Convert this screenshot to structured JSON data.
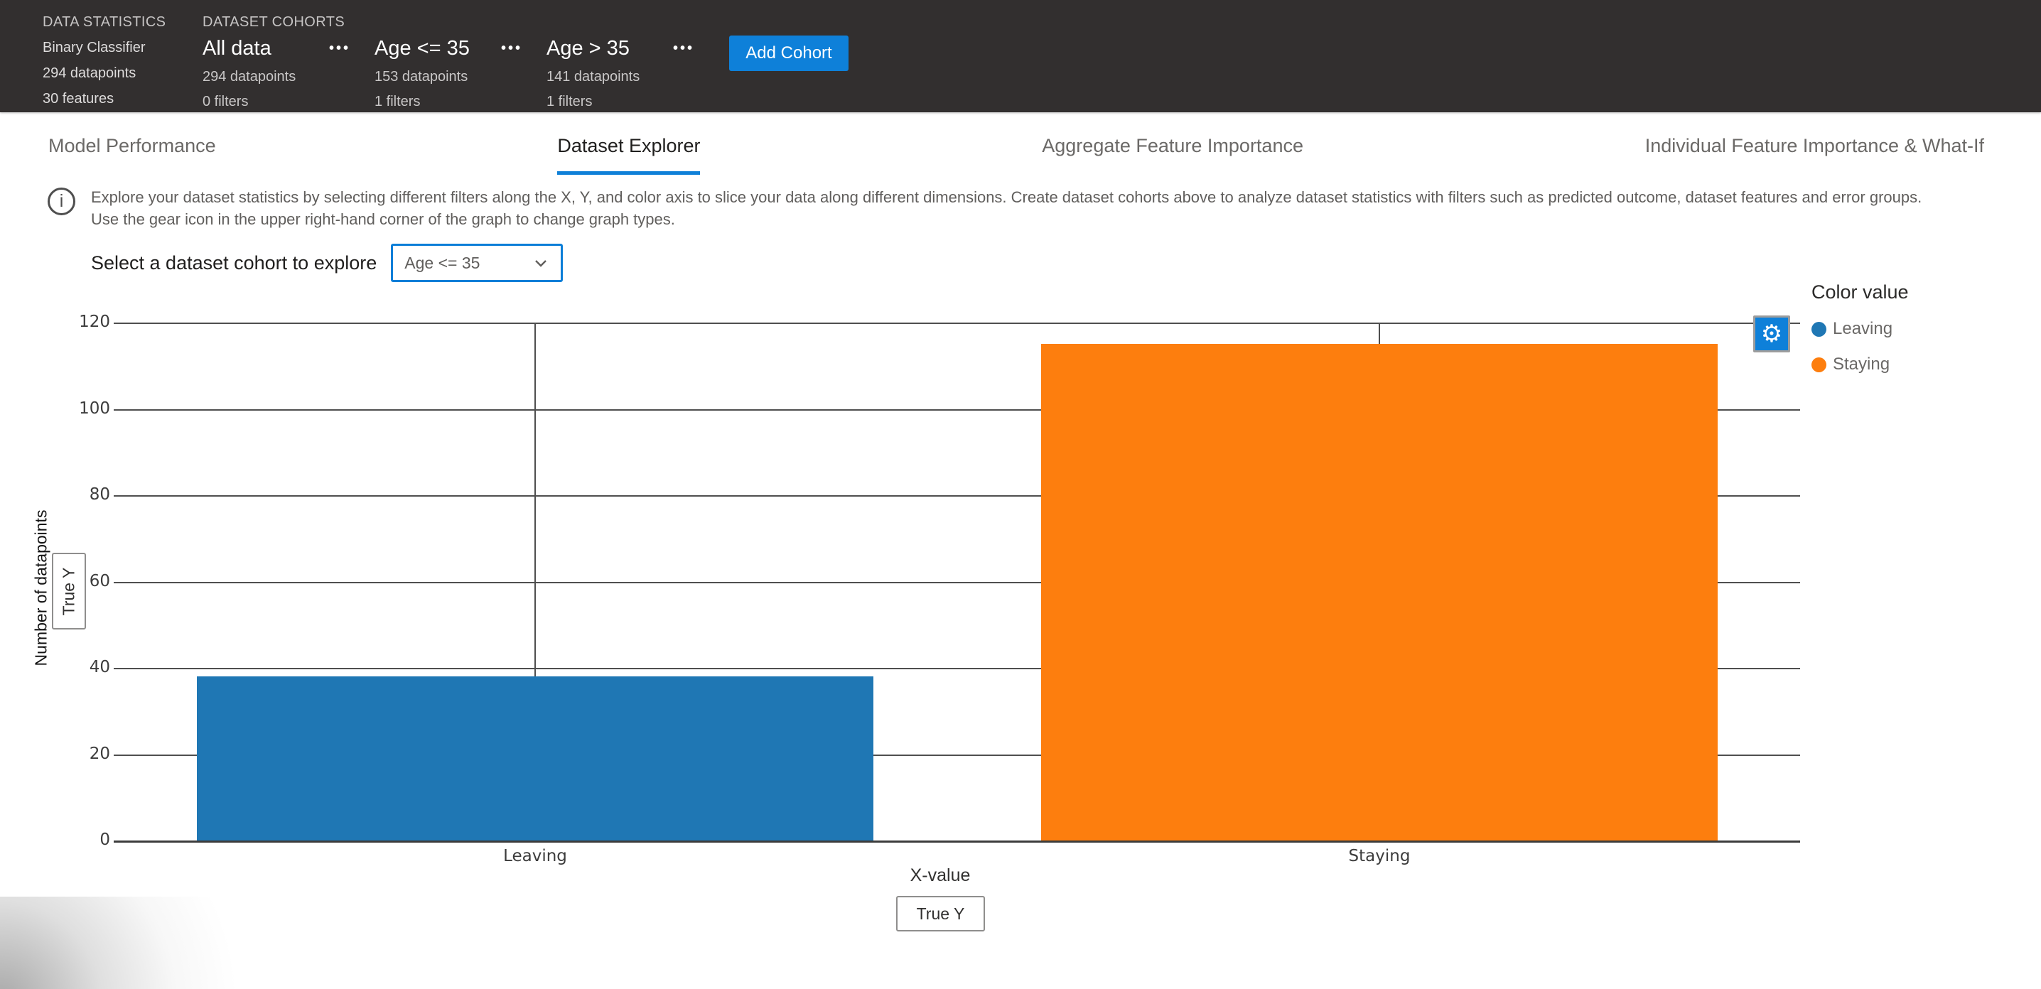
{
  "header": {
    "data_statistics": {
      "label": "DATA STATISTICS",
      "model_type": "Binary Classifier",
      "datapoints": "294 datapoints",
      "features": "30 features"
    },
    "dataset_cohorts": {
      "label": "DATASET COHORTS",
      "cohorts": [
        {
          "name": "All data",
          "datapoints": "294 datapoints",
          "filters": "0 filters"
        },
        {
          "name": "Age <= 35",
          "datapoints": "153 datapoints",
          "filters": "1 filters"
        },
        {
          "name": "Age > 35",
          "datapoints": "141 datapoints",
          "filters": "1 filters"
        }
      ],
      "add_cohort_label": "Add Cohort"
    }
  },
  "tabs": [
    {
      "label": "Model Performance",
      "active": false
    },
    {
      "label": "Dataset Explorer",
      "active": true
    },
    {
      "label": "Aggregate Feature Importance",
      "active": false
    },
    {
      "label": "Individual Feature Importance & What-If",
      "active": false
    }
  ],
  "info": {
    "line1": "Explore your dataset statistics by selecting different filters along the X, Y, and color axis to slice your data along different dimensions. Create dataset cohorts above to analyze dataset statistics with filters such as predicted outcome, dataset features and error groups.",
    "line2": "Use the gear icon in the upper right-hand corner of the graph to change graph types."
  },
  "cohort_selector": {
    "label": "Select a dataset cohort to explore",
    "value": "Age <= 35"
  },
  "chart_data": {
    "type": "bar",
    "categories": [
      "Leaving",
      "Staying"
    ],
    "values": [
      38,
      115
    ],
    "colors": [
      "#1f77b4",
      "#fd7e0e"
    ],
    "xlabel": "X-value",
    "ylabel": "Number of datapoints",
    "ylim": [
      0,
      120
    ],
    "yticks": [
      0,
      20,
      40,
      60,
      80,
      100,
      120
    ],
    "x_axis_button": "True Y",
    "y_axis_button": "True Y",
    "grid": true,
    "legend": {
      "title": "Color value",
      "position": "right",
      "entries": [
        {
          "label": "Leaving",
          "color": "#1f77b4"
        },
        {
          "label": "Staying",
          "color": "#fd7e0e"
        }
      ]
    }
  },
  "icons": {
    "more": "•••",
    "gear": "⚙",
    "info": "i"
  },
  "colors": {
    "accent_blue": "#0e80d9",
    "header_bg": "#322f2f",
    "bar_blue": "#1f77b4",
    "bar_orange": "#fd7e0e"
  }
}
